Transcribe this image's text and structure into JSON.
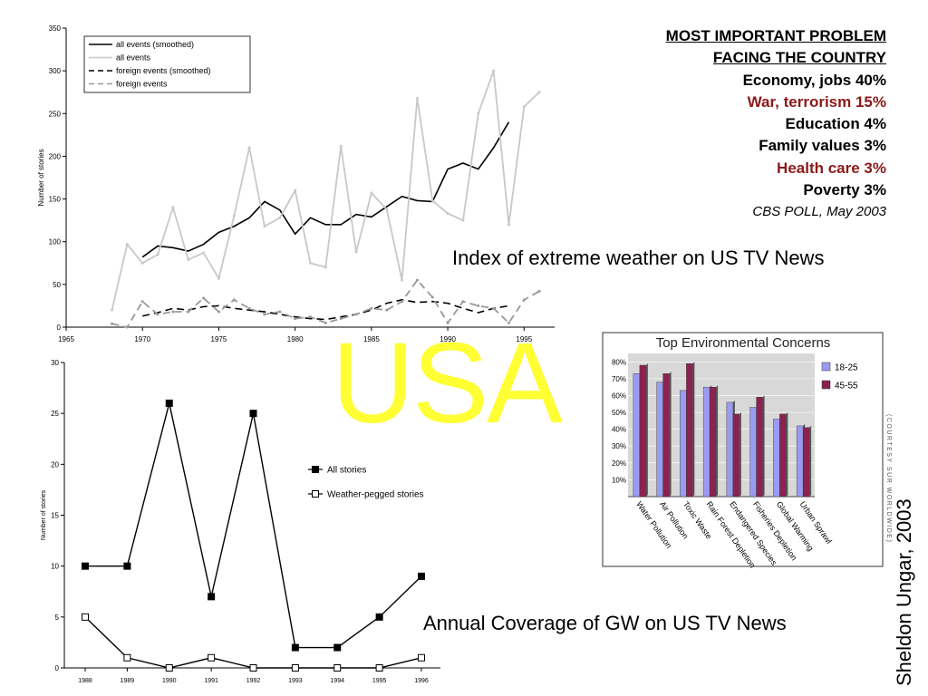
{
  "watermark": "USA",
  "poll": {
    "heading1": "MOST IMPORTANT PROBLEM",
    "heading2": "FACING THE COUNTRY",
    "items": [
      {
        "text": "Economy, jobs  40%",
        "color": "#000000"
      },
      {
        "text": "War, terrorism 15%",
        "color": "#8b1a1a"
      },
      {
        "text": "Education  4%",
        "color": "#000000"
      },
      {
        "text": "Family values  3%",
        "color": "#000000"
      },
      {
        "text": "Health care 3%",
        "color": "#8b1a1a"
      },
      {
        "text": "Poverty  3%",
        "color": "#000000"
      }
    ],
    "source": "CBS POLL, May 2003"
  },
  "captions": {
    "weather": "Index of extreme weather on US TV News",
    "gw": "Annual Coverage of GW on US TV News",
    "credit": "Sheldon Ungar, 2003"
  },
  "chart_data": [
    {
      "type": "line",
      "title": "",
      "xlabel": "",
      "ylabel": "Number of stories",
      "xlim": [
        1965,
        1997
      ],
      "ylim": [
        0,
        350
      ],
      "xticks": [
        1965,
        1970,
        1975,
        1980,
        1985,
        1990,
        1995
      ],
      "yticks": [
        0,
        50,
        100,
        150,
        200,
        250,
        300,
        350
      ],
      "grid": false,
      "legend": "top-left",
      "series": [
        {
          "name": "all events (smoothed)",
          "color": "#000000",
          "style": "solid",
          "x": [
            1970,
            1971,
            1972,
            1973,
            1974,
            1975,
            1976,
            1977,
            1978,
            1979,
            1980,
            1981,
            1982,
            1983,
            1984,
            1985,
            1986,
            1987,
            1988,
            1989,
            1990,
            1991,
            1992,
            1993,
            1994
          ],
          "y": [
            82,
            95,
            93,
            89,
            97,
            111,
            118,
            128,
            147,
            137,
            109,
            128,
            120,
            120,
            132,
            129,
            141,
            153,
            148,
            147,
            185,
            192,
            185,
            210,
            240
          ]
        },
        {
          "name": "all events",
          "color": "#c8c8c8",
          "style": "solid-marker",
          "x": [
            1968,
            1969,
            1970,
            1971,
            1972,
            1973,
            1974,
            1975,
            1976,
            1977,
            1978,
            1979,
            1980,
            1981,
            1982,
            1983,
            1984,
            1985,
            1986,
            1987,
            1988,
            1989,
            1990,
            1991,
            1992,
            1993,
            1994,
            1995,
            1996
          ],
          "y": [
            20,
            97,
            75,
            85,
            140,
            79,
            87,
            57,
            130,
            210,
            118,
            128,
            160,
            75,
            70,
            212,
            88,
            157,
            138,
            55,
            268,
            148,
            133,
            125,
            250,
            300,
            120,
            258,
            275
          ]
        },
        {
          "name": "foreign events (smoothed)",
          "color": "#000000",
          "style": "dashed",
          "x": [
            1970,
            1971,
            1972,
            1973,
            1974,
            1975,
            1976,
            1977,
            1978,
            1979,
            1980,
            1981,
            1982,
            1983,
            1984,
            1985,
            1986,
            1987,
            1988,
            1989,
            1990,
            1991,
            1992,
            1993,
            1994
          ],
          "y": [
            13,
            17,
            22,
            20,
            24,
            25,
            22,
            20,
            18,
            15,
            12,
            10,
            9,
            12,
            15,
            20,
            28,
            32,
            29,
            30,
            28,
            22,
            17,
            22,
            25
          ]
        },
        {
          "name": "foreign events",
          "color": "#999999",
          "style": "dashed-marker",
          "x": [
            1968,
            1969,
            1970,
            1971,
            1972,
            1973,
            1974,
            1975,
            1976,
            1977,
            1978,
            1979,
            1980,
            1981,
            1982,
            1983,
            1984,
            1985,
            1986,
            1987,
            1988,
            1989,
            1990,
            1991,
            1992,
            1993,
            1994,
            1995,
            1996
          ],
          "y": [
            4,
            0,
            30,
            15,
            18,
            18,
            34,
            18,
            32,
            22,
            15,
            18,
            10,
            12,
            5,
            10,
            15,
            22,
            20,
            30,
            55,
            35,
            5,
            30,
            25,
            22,
            5,
            32,
            42
          ]
        }
      ]
    },
    {
      "type": "line",
      "title": "",
      "xlabel": "",
      "ylabel": "Number of stories",
      "categories": [
        "1988",
        "1989",
        "1990",
        "1991",
        "1992",
        "1993",
        "1994",
        "1995",
        "1996"
      ],
      "ylim": [
        0,
        30
      ],
      "yticks": [
        0,
        5,
        10,
        15,
        20,
        25,
        30
      ],
      "grid": false,
      "legend": "right",
      "series": [
        {
          "name": "All stories",
          "color": "#000000",
          "marker": "filled-square",
          "values": [
            10,
            10,
            26,
            7,
            25,
            2,
            2,
            5,
            9
          ]
        },
        {
          "name": "Weather-pegged stories",
          "color": "#000000",
          "marker": "open-square",
          "values": [
            5,
            1,
            0,
            1,
            0,
            0,
            0,
            0,
            1
          ]
        }
      ]
    },
    {
      "type": "bar",
      "title": "Top Environmental Concerns",
      "xlabel": "",
      "ylabel": "",
      "categories": [
        "Water Pollution",
        "Air Pollution",
        "Toxic Waste",
        "Rain Forest Depletion",
        "Endangered Species",
        "Fisheries Depletion",
        "Global Warming",
        "Urban Sprawl"
      ],
      "ylim": [
        0,
        85
      ],
      "yticks": [
        "10%",
        "20%",
        "30%",
        "40%",
        "50%",
        "60%",
        "70%",
        "80%"
      ],
      "grid": true,
      "legend": "right",
      "series": [
        {
          "name": "18-25",
          "color": "#9b9bf0",
          "values": [
            73,
            68,
            63,
            65,
            56,
            53,
            46,
            42
          ]
        },
        {
          "name": "45-55",
          "color": "#8b2252",
          "values": [
            78,
            73,
            79,
            65,
            49,
            59,
            49,
            41
          ]
        }
      ],
      "side_note": "(COURTESY SUR WORLDWIDE)"
    }
  ]
}
